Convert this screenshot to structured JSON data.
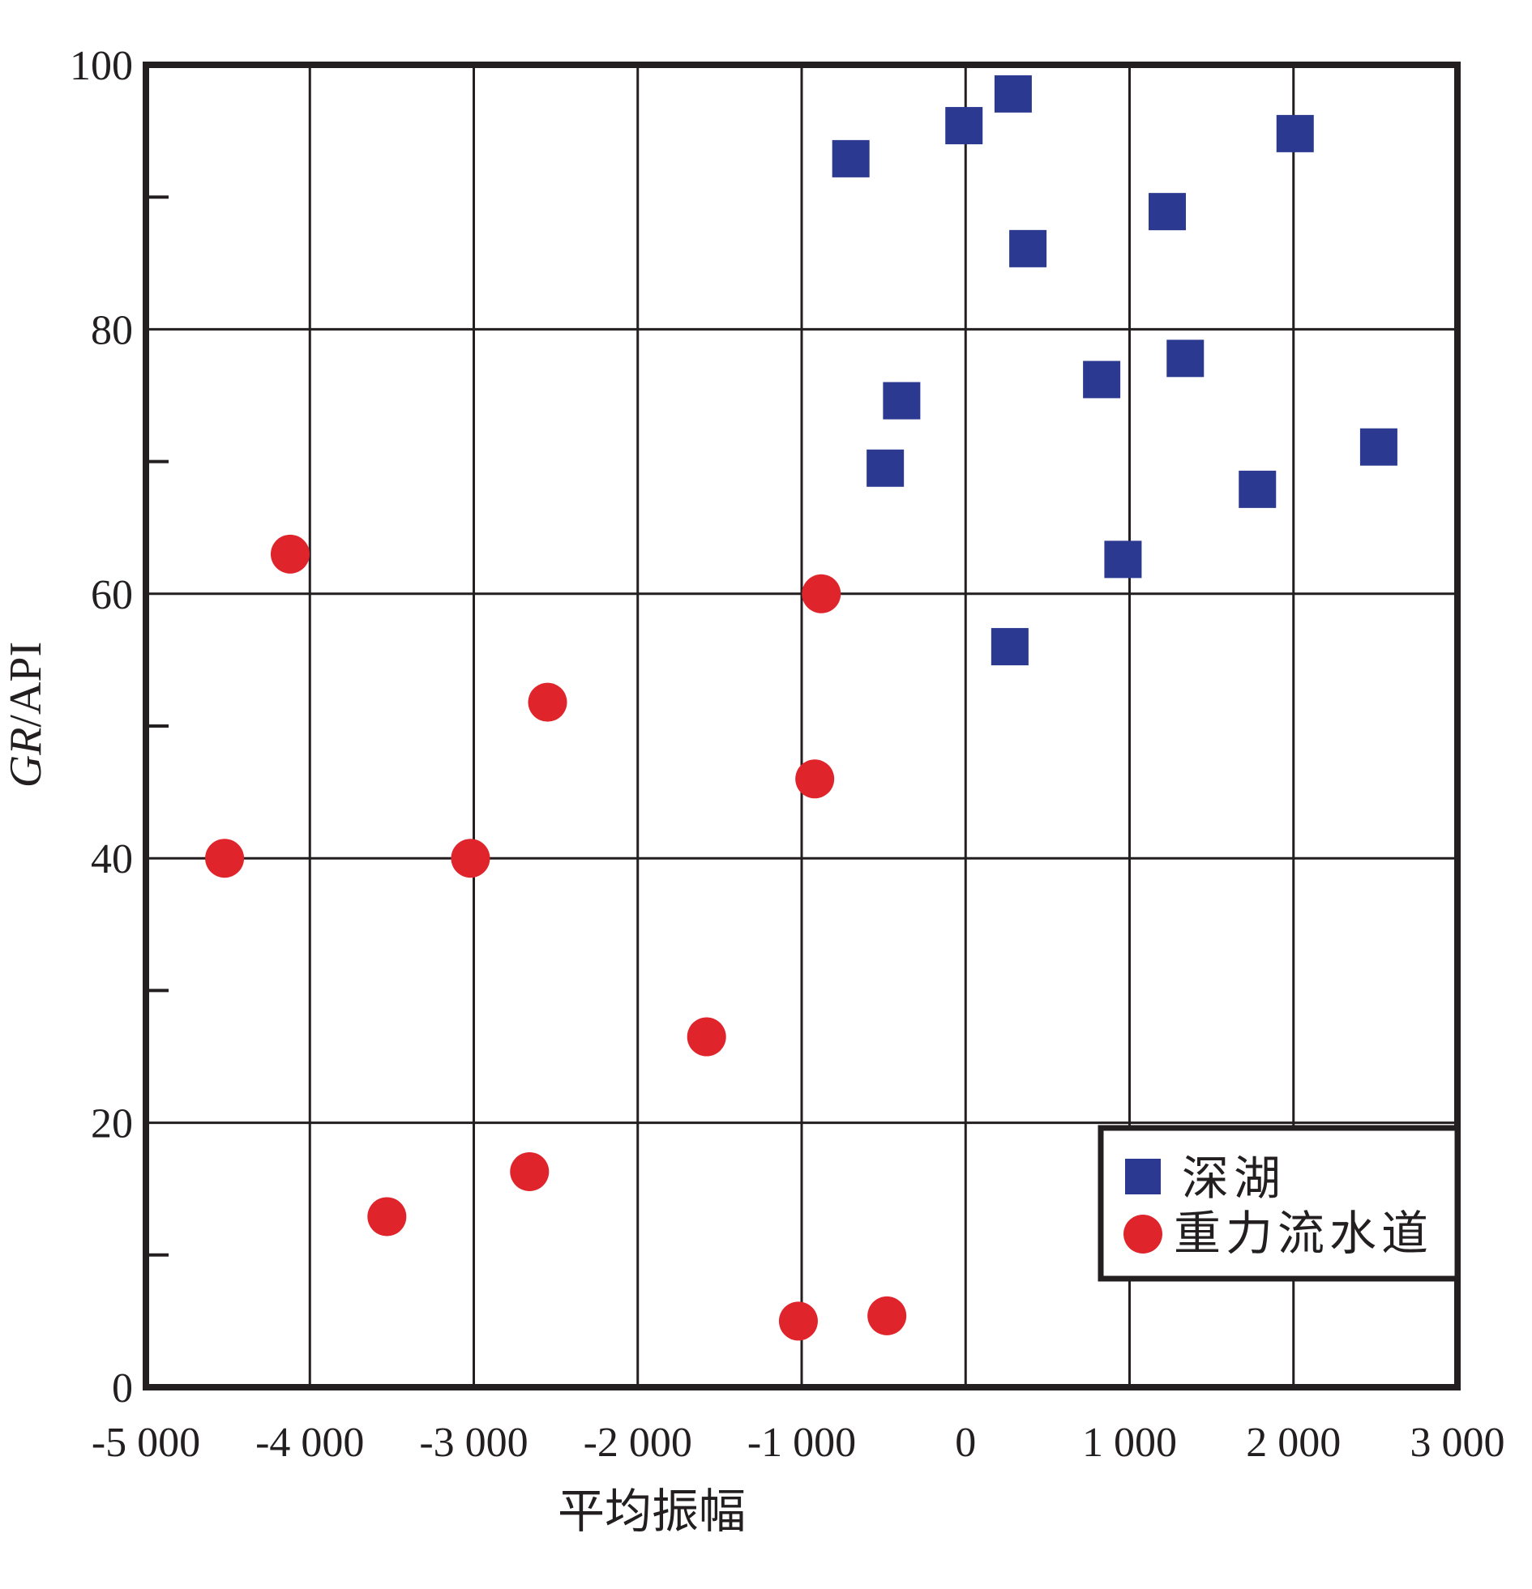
{
  "chart_data": {
    "type": "scatter",
    "xlabel": "平均振幅",
    "ylabel": {
      "italic": "GR",
      "plain": "/API"
    },
    "xlim": [
      -5000,
      3000
    ],
    "ylim": [
      0,
      100
    ],
    "x_ticks": [
      {
        "value": -5000,
        "label": "-5 000"
      },
      {
        "value": -4000,
        "label": "-4 000"
      },
      {
        "value": -3000,
        "label": "-3 000"
      },
      {
        "value": -2000,
        "label": "-2 000"
      },
      {
        "value": -1000,
        "label": "-1 000"
      },
      {
        "value": 0,
        "label": "0"
      },
      {
        "value": 1000,
        "label": "1 000"
      },
      {
        "value": 2000,
        "label": "2 000"
      },
      {
        "value": 3000,
        "label": "3 000"
      }
    ],
    "y_ticks": [
      {
        "value": 0,
        "label": "0"
      },
      {
        "value": 20,
        "label": "20"
      },
      {
        "value": 40,
        "label": "40"
      },
      {
        "value": 60,
        "label": "60"
      },
      {
        "value": 80,
        "label": "80"
      },
      {
        "value": 100,
        "label": "100"
      }
    ],
    "y_minor_ticks": [
      10,
      30,
      50,
      70,
      90
    ],
    "grid": true,
    "legend_position": "bottom-right",
    "series": [
      {
        "name": "深湖",
        "marker": "square",
        "color": "#2b3990",
        "points": [
          {
            "x": -700,
            "y": 92.9
          },
          {
            "x": -10,
            "y": 95.4
          },
          {
            "x": 290,
            "y": 97.8
          },
          {
            "x": 2010,
            "y": 94.8
          },
          {
            "x": 1230,
            "y": 88.9
          },
          {
            "x": 380,
            "y": 86.1
          },
          {
            "x": 830,
            "y": 76.2
          },
          {
            "x": 1340,
            "y": 77.8
          },
          {
            "x": -390,
            "y": 74.6
          },
          {
            "x": -490,
            "y": 69.5
          },
          {
            "x": 2520,
            "y": 71.1
          },
          {
            "x": 1780,
            "y": 67.9
          },
          {
            "x": 960,
            "y": 62.6
          },
          {
            "x": 270,
            "y": 56.0
          }
        ]
      },
      {
        "name": "重力流水道",
        "marker": "circle",
        "color": "#e0242b",
        "points": [
          {
            "x": -4120,
            "y": 63.0
          },
          {
            "x": -880,
            "y": 60.0
          },
          {
            "x": -2550,
            "y": 51.8
          },
          {
            "x": -920,
            "y": 46.0
          },
          {
            "x": -4520,
            "y": 40.0
          },
          {
            "x": -3020,
            "y": 40.0
          },
          {
            "x": -1580,
            "y": 26.5
          },
          {
            "x": -2660,
            "y": 16.3
          },
          {
            "x": -3530,
            "y": 12.9
          },
          {
            "x": -1020,
            "y": 5.0
          },
          {
            "x": -480,
            "y": 5.4
          }
        ]
      }
    ]
  }
}
